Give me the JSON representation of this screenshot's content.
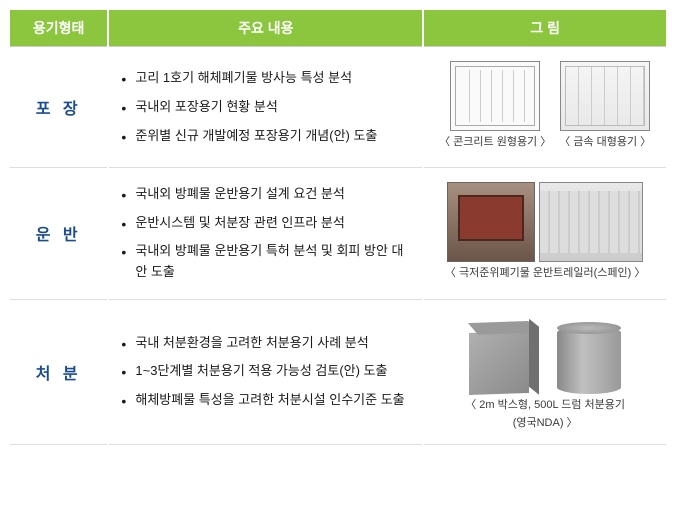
{
  "header": {
    "col1": "용기형태",
    "col2": "주요 내용",
    "col3": "그 림"
  },
  "rows": [
    {
      "label": "포 장",
      "items": [
        "고리 1호기 해체폐기물 방사능 특성 분석",
        "국내외 포장용기 현황 분석",
        "준위별 신규 개발예정 포장용기 개념(안) 도출"
      ],
      "figure": {
        "captions": [
          "〈 콘크리트 원형용기 〉",
          "〈 금속 대형용기 〉"
        ]
      }
    },
    {
      "label": "운 반",
      "items": [
        "국내외 방폐물 운반용기 설계 요건 분석",
        "운반시스템 및 처분장 관련 인프라 분석",
        "국내외 방폐물 운반용기 특허 분석 및 회피 방안 대안 도출"
      ],
      "figure": {
        "captions": [
          "〈 극저준위폐기물 운반트레일러(스페인) 〉"
        ]
      }
    },
    {
      "label": "처 분",
      "items": [
        "국내 처분환경을 고려한 처분용기 사례 분석",
        "1~3단계별 처분용기 적용 가능성 검토(안) 도출",
        "해체방폐물 특성을 고려한 처분시설 인수기준 도출"
      ],
      "figure": {
        "captions": [
          "〈 2m 박스형, 500L 드럼 처분용기",
          "(영국NDA) 〉"
        ]
      }
    }
  ]
}
